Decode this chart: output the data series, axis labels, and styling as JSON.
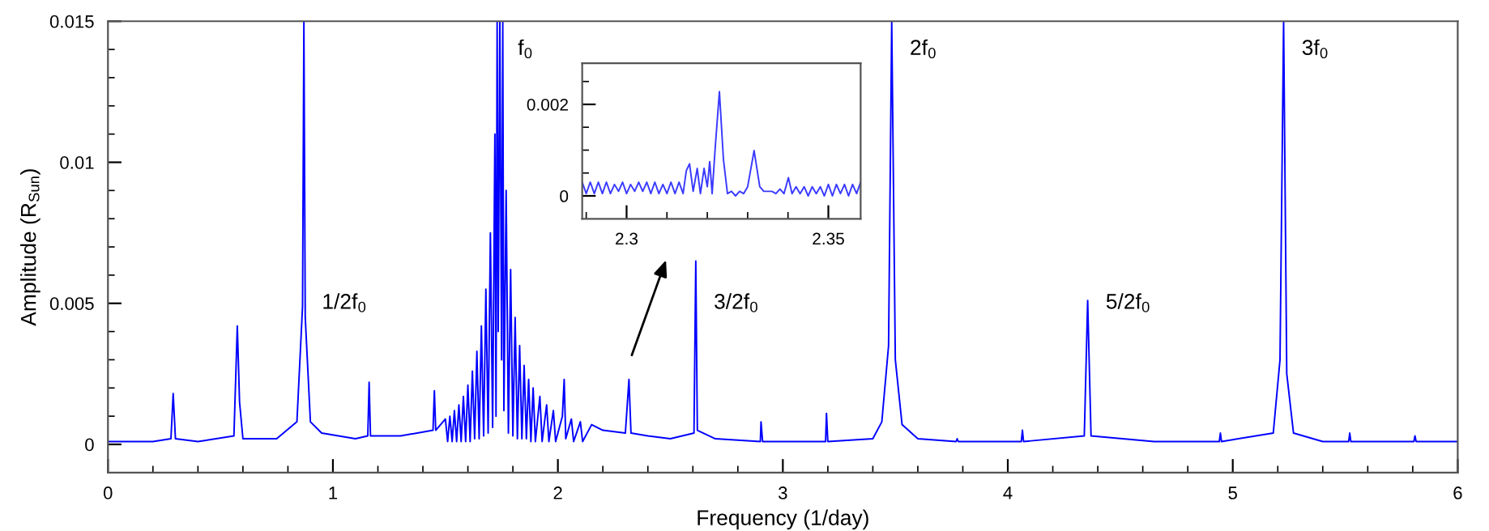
{
  "chart_data": [
    {
      "type": "line",
      "xlabel": "Frequency (1/day)",
      "ylabel": "Amplitude (R$_{Sun}$)",
      "xlim": [
        0,
        6
      ],
      "ylim": [
        -0.001,
        0.015
      ],
      "xticks": [
        0,
        {
          "value": 0.2,
          "label": null
        },
        {
          "value": 0.4,
          "label": null
        },
        {
          "value": 0.6,
          "label": null
        },
        {
          "value": 0.8,
          "label": null
        },
        1,
        {
          "value": 1.2,
          "label": null
        },
        {
          "value": 1.4,
          "label": null
        },
        {
          "value": 1.6,
          "label": null
        },
        {
          "value": 1.8,
          "label": null
        },
        2,
        {
          "value": 2.2,
          "label": null
        },
        {
          "value": 2.4,
          "label": null
        },
        {
          "value": 2.6,
          "label": null
        },
        {
          "value": 2.8,
          "label": null
        },
        3,
        {
          "value": 3.2,
          "label": null
        },
        {
          "value": 3.4,
          "label": null
        },
        {
          "value": 3.6,
          "label": null
        },
        {
          "value": 3.8,
          "label": null
        },
        4,
        {
          "value": 4.2,
          "label": null
        },
        {
          "value": 4.4,
          "label": null
        },
        {
          "value": 4.6,
          "label": null
        },
        {
          "value": 4.8,
          "label": null
        },
        5,
        {
          "value": 5.2,
          "label": null
        },
        {
          "value": 5.4,
          "label": null
        },
        {
          "value": 5.6,
          "label": null
        },
        {
          "value": 5.8,
          "label": null
        },
        6
      ],
      "yticks": [
        0,
        {
          "value": 0.001,
          "label": null
        },
        {
          "value": 0.002,
          "label": null
        },
        {
          "value": 0.003,
          "label": null
        },
        {
          "value": 0.004,
          "label": null
        },
        0.005,
        {
          "value": 0.006,
          "label": null
        },
        {
          "value": 0.007,
          "label": null
        },
        {
          "value": 0.008,
          "label": null
        },
        {
          "value": 0.009,
          "label": null
        },
        0.01,
        {
          "value": 0.011,
          "label": null
        },
        {
          "value": 0.012,
          "label": null
        },
        {
          "value": 0.013,
          "label": null
        },
        {
          "value": 0.014,
          "label": null
        },
        0.015
      ],
      "series": [
        {
          "color": "#0000ff",
          "x": [
            0.0,
            0.2,
            0.28,
            0.29,
            0.3,
            0.4,
            0.56,
            0.575,
            0.585,
            0.6,
            0.75,
            0.84,
            0.865,
            0.871,
            0.877,
            0.9,
            0.95,
            1.1,
            1.155,
            1.161,
            1.167,
            1.3,
            1.445,
            1.451,
            1.457,
            1.5,
            1.51,
            1.52,
            1.53,
            1.54,
            1.55,
            1.56,
            1.57,
            1.58,
            1.59,
            1.6,
            1.61,
            1.62,
            1.63,
            1.64,
            1.65,
            1.66,
            1.67,
            1.68,
            1.69,
            1.7,
            1.71,
            1.72,
            1.725,
            1.73,
            1.735,
            1.742,
            1.75,
            1.755,
            1.76,
            1.77,
            1.78,
            1.79,
            1.8,
            1.81,
            1.82,
            1.83,
            1.84,
            1.85,
            1.86,
            1.87,
            1.88,
            1.89,
            1.9,
            1.92,
            1.93,
            1.95,
            1.96,
            1.98,
            1.99,
            2.02,
            2.028,
            2.035,
            2.06,
            2.07,
            2.1,
            2.11,
            2.15,
            2.2,
            2.3,
            2.316,
            2.325,
            2.4,
            2.5,
            2.605,
            2.613,
            2.62,
            2.7,
            2.9,
            2.903,
            2.91,
            3.19,
            3.194,
            3.2,
            3.4,
            3.44,
            3.47,
            3.484,
            3.5,
            3.53,
            3.6,
            3.77,
            3.775,
            3.78,
            4.06,
            4.065,
            4.07,
            4.34,
            4.355,
            4.37,
            4.65,
            4.94,
            4.945,
            4.95,
            5.18,
            5.21,
            5.226,
            5.24,
            5.27,
            5.4,
            5.515,
            5.52,
            5.525,
            5.805,
            5.81,
            5.815,
            6.0
          ],
          "values": [
            0.0001,
            0.0001,
            0.0002,
            0.0018,
            0.0002,
            0.0001,
            0.0003,
            0.0042,
            0.0015,
            0.0002,
            0.0002,
            0.0008,
            0.0049,
            0.015,
            0.0045,
            0.0008,
            0.0004,
            0.0002,
            0.0003,
            0.0022,
            0.0003,
            0.0003,
            0.0005,
            0.0019,
            0.0005,
            0.0009,
            0.0001,
            0.001,
            0.0001,
            0.0012,
            0.0001,
            0.0014,
            0.0001,
            0.0017,
            0.0001,
            0.0021,
            0.0001,
            0.0026,
            0.0002,
            0.0033,
            0.0002,
            0.0042,
            0.0003,
            0.0055,
            0.0004,
            0.0075,
            0.0006,
            0.011,
            0.001,
            0.015,
            0.004,
            0.015,
            0.003,
            0.015,
            0.0012,
            0.009,
            0.0004,
            0.0062,
            0.0003,
            0.0045,
            0.0002,
            0.0035,
            0.0002,
            0.0028,
            0.0002,
            0.0023,
            0.0001,
            0.002,
            0.0001,
            0.0017,
            0.0001,
            0.0014,
            0.0001,
            0.0012,
            0.0001,
            0.001,
            0.0023,
            0.0002,
            0.0009,
            0.0001,
            0.0008,
            0.0001,
            0.0007,
            0.0005,
            0.0004,
            0.0023,
            0.0004,
            0.0003,
            0.0002,
            0.0004,
            0.0065,
            0.0005,
            0.0002,
            0.0001,
            0.0008,
            0.0001,
            0.0001,
            0.0011,
            0.0001,
            0.0002,
            0.0008,
            0.0035,
            0.015,
            0.003,
            0.0007,
            0.0002,
            0.0001,
            0.0002,
            0.0001,
            0.0001,
            0.0005,
            0.0001,
            0.0003,
            0.0051,
            0.0003,
            0.0001,
            0.0001,
            0.0004,
            0.0001,
            0.0004,
            0.003,
            0.015,
            0.0025,
            0.0004,
            0.0001,
            0.0001,
            0.0004,
            0.0001,
            0.0001,
            0.0003,
            0.0001,
            0.0001
          ]
        }
      ],
      "annotations": [
        {
          "text": "1/2f$_{0}$",
          "x": 0.871,
          "y": 0.005
        },
        {
          "text": "f$_{0}$",
          "x": 1.742,
          "y": 0.014
        },
        {
          "text": "3/2f$_{0}$",
          "x": 2.613,
          "y": 0.005
        },
        {
          "text": "2f$_{0}$",
          "x": 3.484,
          "y": 0.014
        },
        {
          "text": "5/2f$_{0}$",
          "x": 4.355,
          "y": 0.005
        },
        {
          "text": "3f$_{0}$",
          "x": 5.226,
          "y": 0.014
        }
      ]
    },
    {
      "type": "line",
      "xlim": [
        2.289,
        2.358
      ],
      "ylim": [
        -0.0005,
        0.0029
      ],
      "xticks": [
        {
          "value": 2.29,
          "label": null
        },
        2.3,
        {
          "value": 2.31,
          "label": null
        },
        {
          "value": 2.32,
          "label": null
        },
        {
          "value": 2.33,
          "label": null
        },
        {
          "value": 2.34,
          "label": null
        },
        2.35
      ],
      "yticks": [
        0,
        {
          "value": 0.0005,
          "label": null
        },
        {
          "value": 0.001,
          "label": null
        },
        {
          "value": 0.0015,
          "label": null
        },
        0.002,
        {
          "value": 0.0025,
          "label": null
        }
      ],
      "series": [
        {
          "color": "#3a3aff",
          "x": [
            2.289,
            2.29,
            2.291,
            2.292,
            2.293,
            2.294,
            2.295,
            2.296,
            2.297,
            2.298,
            2.299,
            2.3,
            2.301,
            2.302,
            2.303,
            2.304,
            2.305,
            2.306,
            2.307,
            2.308,
            2.309,
            2.31,
            2.311,
            2.312,
            2.313,
            2.314,
            2.3148,
            2.3156,
            2.3165,
            2.3175,
            2.3183,
            2.3192,
            2.32,
            2.3206,
            2.3212,
            2.322,
            2.323,
            2.324,
            2.325,
            2.326,
            2.327,
            2.328,
            2.329,
            2.33,
            2.3316,
            2.333,
            2.334,
            2.336,
            2.337,
            2.338,
            2.339,
            2.3401,
            2.341,
            2.342,
            2.343,
            2.344,
            2.345,
            2.346,
            2.347,
            2.348,
            2.349,
            2.35,
            2.351,
            2.352,
            2.353,
            2.354,
            2.355,
            2.356,
            2.357,
            2.358
          ],
          "values": [
            0.0003,
            5e-05,
            0.0003,
            5e-05,
            0.0003,
            5e-05,
            0.0003,
            5e-05,
            0.00025,
            0.0001,
            0.0003,
            5e-05,
            0.00025,
            0.0001,
            0.0003,
            0.0001,
            0.0003,
            5e-05,
            0.0003,
            5e-05,
            0.00025,
            5e-05,
            0.0003,
            5e-05,
            0.0003,
            5e-05,
            0.00055,
            0.0007,
            0.0001,
            0.0006,
            5e-05,
            0.0006,
            0.0002,
            0.00075,
            5e-05,
            0.0011,
            0.00228,
            0.0008,
            5e-05,
            0.0001,
            0.0,
            0.0001,
            5e-05,
            0.0002,
            0.00099,
            0.0002,
            0.0001,
            0.0001,
            5e-05,
            0.00015,
            5e-05,
            0.0004,
            5e-05,
            0.0002,
            5e-05,
            0.0002,
            0.0,
            0.0002,
            5e-05,
            0.0002,
            0.0,
            0.00025,
            0.0,
            0.00025,
            5e-05,
            0.00025,
            0.0,
            0.00025,
            5e-05,
            0.0003
          ]
        }
      ]
    }
  ]
}
